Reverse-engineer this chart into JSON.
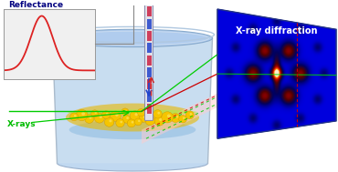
{
  "fig_width": 3.7,
  "fig_height": 1.89,
  "dpi": 100,
  "bg_color": "#ffffff",
  "reflectance_title": "Reflectance",
  "reflectance_title_color": "#000080",
  "reflectance_title_fontsize": 6.5,
  "reflectance_curve_color": "#dd2222",
  "reflectance_bg": "#f0f0f0",
  "xray_panel_title": "X-ray diffraction",
  "xray_title_color": "#ffffff",
  "xray_title_fontsize": 7.0,
  "xrays_label": "X-rays",
  "xrays_label_color": "#00bb00",
  "xrays_label_fontsize": 6.5,
  "beaker_fill_light": "#c0d8f0",
  "nanoparticle_color": "#f5c500",
  "nanoparticle_edge": "#c89000",
  "arrow_blue": "#2244cc",
  "arrow_red": "#cc2222",
  "green_beam": "#00cc00",
  "red_beam": "#cc0000"
}
